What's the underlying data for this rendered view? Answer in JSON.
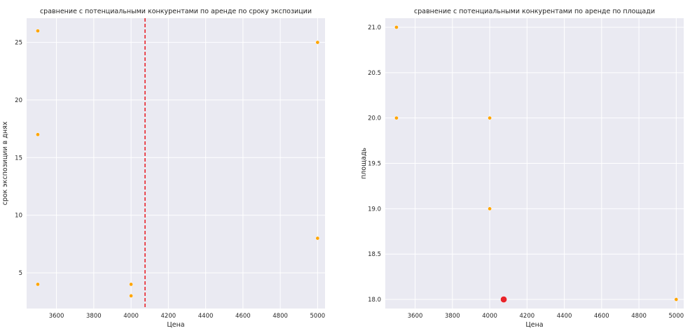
{
  "chart_data": [
    {
      "type": "scatter",
      "title": "сравнение с потенциальными конкурентами по аренде по сроку экспозиции",
      "xlabel": "Цена",
      "ylabel": "срок экспозиции в днях",
      "xlim": [
        3440,
        5040
      ],
      "ylim": [
        1.9,
        27.1
      ],
      "xticks": [
        3600,
        3800,
        4000,
        4200,
        4400,
        4600,
        4800,
        5000
      ],
      "yticks": [
        5,
        10,
        15,
        20,
        25
      ],
      "grid": true,
      "background": "#eaeaf2",
      "series": [
        {
          "color": "#ffa500",
          "points": [
            {
              "x": 3500,
              "y": 26
            },
            {
              "x": 3500,
              "y": 17
            },
            {
              "x": 3500,
              "y": 4
            },
            {
              "x": 4000,
              "y": 4
            },
            {
              "x": 4000,
              "y": 3
            },
            {
              "x": 5000,
              "y": 25
            },
            {
              "x": 5000,
              "y": 8
            }
          ]
        }
      ],
      "vline": {
        "x": 4075,
        "color": "#e8232a",
        "style": "dashed"
      }
    },
    {
      "type": "scatter",
      "title": "сравнение с потенциальными конкурентами по аренде по площади",
      "xlabel": "Цена",
      "ylabel": "площадь",
      "xlim": [
        3440,
        5040
      ],
      "ylim": [
        17.9,
        21.1
      ],
      "xticks": [
        3600,
        3800,
        4000,
        4200,
        4400,
        4600,
        4800,
        5000
      ],
      "yticks": [
        18.0,
        18.5,
        19.0,
        19.5,
        20.0,
        20.5,
        21.0
      ],
      "grid": true,
      "background": "#eaeaf2",
      "series": [
        {
          "color": "#ffa500",
          "points": [
            {
              "x": 3500,
              "y": 21
            },
            {
              "x": 3500,
              "y": 20
            },
            {
              "x": 4000,
              "y": 20
            },
            {
              "x": 4000,
              "y": 19
            },
            {
              "x": 5000,
              "y": 18
            }
          ]
        }
      ],
      "highlight": {
        "x": 4075,
        "y": 18,
        "color": "#e8232a"
      }
    }
  ]
}
